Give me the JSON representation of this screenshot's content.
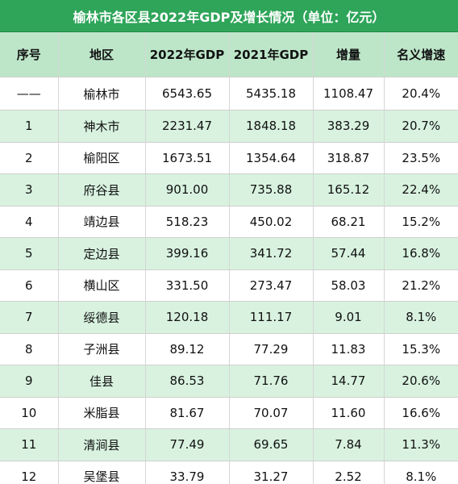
{
  "title": "榆林市各区县2022年GDP及增长情况（单位：亿元）",
  "colors": {
    "header_bar": "#2fa55a",
    "column_header_bg": "#bde6c9",
    "stripe_bg": "#d8f2df"
  },
  "columns": [
    "序号",
    "地区",
    "2022年GDP",
    "2021年GDP",
    "增量",
    "名义增速"
  ],
  "rows": [
    {
      "rank": "——",
      "region": "榆林市",
      "gdp2022": "6543.65",
      "gdp2021": "5435.18",
      "increase": "1108.47",
      "growth": "20.4%"
    },
    {
      "rank": "1",
      "region": "神木市",
      "gdp2022": "2231.47",
      "gdp2021": "1848.18",
      "increase": "383.29",
      "growth": "20.7%"
    },
    {
      "rank": "2",
      "region": "榆阳区",
      "gdp2022": "1673.51",
      "gdp2021": "1354.64",
      "increase": "318.87",
      "growth": "23.5%"
    },
    {
      "rank": "3",
      "region": "府谷县",
      "gdp2022": "901.00",
      "gdp2021": "735.88",
      "increase": "165.12",
      "growth": "22.4%"
    },
    {
      "rank": "4",
      "region": "靖边县",
      "gdp2022": "518.23",
      "gdp2021": "450.02",
      "increase": "68.21",
      "growth": "15.2%"
    },
    {
      "rank": "5",
      "region": "定边县",
      "gdp2022": "399.16",
      "gdp2021": "341.72",
      "increase": "57.44",
      "growth": "16.8%"
    },
    {
      "rank": "6",
      "region": "横山区",
      "gdp2022": "331.50",
      "gdp2021": "273.47",
      "increase": "58.03",
      "growth": "21.2%"
    },
    {
      "rank": "7",
      "region": "绥德县",
      "gdp2022": "120.18",
      "gdp2021": "111.17",
      "increase": "9.01",
      "growth": "8.1%"
    },
    {
      "rank": "8",
      "region": "子洲县",
      "gdp2022": "89.12",
      "gdp2021": "77.29",
      "increase": "11.83",
      "growth": "15.3%"
    },
    {
      "rank": "9",
      "region": "佳县",
      "gdp2022": "86.53",
      "gdp2021": "71.76",
      "increase": "14.77",
      "growth": "20.6%"
    },
    {
      "rank": "10",
      "region": "米脂县",
      "gdp2022": "81.67",
      "gdp2021": "70.07",
      "increase": "11.60",
      "growth": "16.6%"
    },
    {
      "rank": "11",
      "region": "清涧县",
      "gdp2022": "77.49",
      "gdp2021": "69.65",
      "increase": "7.84",
      "growth": "11.3%"
    },
    {
      "rank": "12",
      "region": "吴堡县",
      "gdp2022": "33.79",
      "gdp2021": "31.27",
      "increase": "2.52",
      "growth": "8.1%"
    }
  ]
}
